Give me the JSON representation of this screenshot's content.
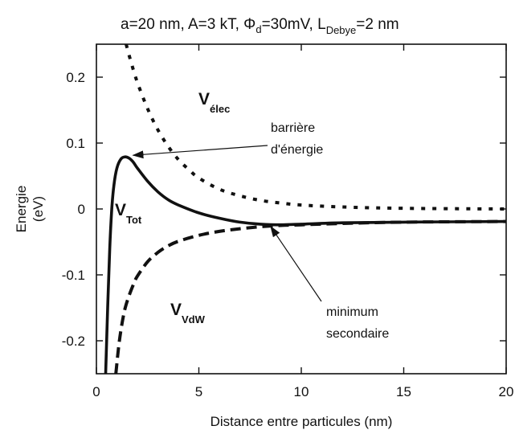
{
  "chart_data": {
    "type": "line",
    "title_parts": {
      "a": "a=20 nm, A=3 kT, ",
      "phi": "Φ",
      "phi_sub": "d",
      "phi_rest": "=30mV, L",
      "debye_sub": "Debye",
      "tail": "=2 nm"
    },
    "xlabel": "Distance entre particules (nm)",
    "ylabel_line1": "Energie",
    "ylabel_line2": "(eV)",
    "xlim": [
      0,
      20
    ],
    "ylim": [
      -0.25,
      0.25
    ],
    "xticks": [
      0,
      5,
      10,
      15,
      20
    ],
    "xtick_labels": [
      "0",
      "5",
      "10",
      "15",
      "20"
    ],
    "yticks": [
      0.2,
      0.1,
      0,
      -0.1,
      -0.2
    ],
    "ytick_labels": [
      "0.2",
      "0.1",
      "0",
      "-0.1",
      "-0.2"
    ],
    "grid": false,
    "series": [
      {
        "id": "v-elec",
        "style": "dotted",
        "label_main": "V",
        "label_sub": "élec",
        "x": [
          1.45,
          1.7,
          2.0,
          2.5,
          3.0,
          3.5,
          4.0,
          4.5,
          5.0,
          6.0,
          7.0,
          8.0,
          9.0,
          10.0,
          12.0,
          15.0,
          20.0
        ],
        "y": [
          0.25,
          0.222,
          0.192,
          0.152,
          0.12,
          0.095,
          0.075,
          0.06,
          0.047,
          0.03,
          0.02,
          0.013,
          0.009,
          0.006,
          0.003,
          0.001,
          0.0
        ]
      },
      {
        "id": "v-tot",
        "style": "solid",
        "label_main": "V",
        "label_sub": "Tot",
        "x": [
          0.45,
          0.55,
          0.65,
          0.75,
          0.85,
          1.0,
          1.2,
          1.4,
          1.6,
          1.8,
          2.0,
          2.5,
          3.0,
          3.5,
          4.0,
          5.0,
          6.0,
          7.0,
          8.0,
          9.0,
          10.0,
          12.0,
          15.0,
          20.0
        ],
        "y": [
          -0.25,
          -0.15,
          -0.06,
          0.0,
          0.035,
          0.062,
          0.076,
          0.079,
          0.077,
          0.071,
          0.062,
          0.042,
          0.026,
          0.014,
          0.006,
          -0.006,
          -0.014,
          -0.02,
          -0.023,
          -0.024,
          -0.023,
          -0.021,
          -0.02,
          -0.019
        ]
      },
      {
        "id": "v-vdw",
        "style": "dashed",
        "label_main": "V",
        "label_sub": "VdW",
        "x": [
          0.95,
          1.1,
          1.3,
          1.5,
          1.8,
          2.0,
          2.5,
          3.0,
          3.5,
          4.0,
          5.0,
          6.0,
          7.0,
          8.0,
          9.0,
          10.0,
          12.0,
          15.0,
          20.0
        ],
        "y": [
          -0.25,
          -0.205,
          -0.165,
          -0.14,
          -0.115,
          -0.102,
          -0.08,
          -0.066,
          -0.056,
          -0.049,
          -0.04,
          -0.034,
          -0.03,
          -0.027,
          -0.025,
          -0.024,
          -0.022,
          -0.02,
          -0.019
        ]
      }
    ],
    "annotations": [
      {
        "id": "barrier",
        "line1": "barrière",
        "line2": "d'énergie",
        "target": [
          1.55,
          0.079
        ]
      },
      {
        "id": "secondary-min",
        "line1": "minimum",
        "line2": "secondaire",
        "target": [
          8.5,
          -0.024
        ]
      }
    ],
    "colors": {
      "curve": "#111111",
      "background": "#ffffff"
    }
  }
}
